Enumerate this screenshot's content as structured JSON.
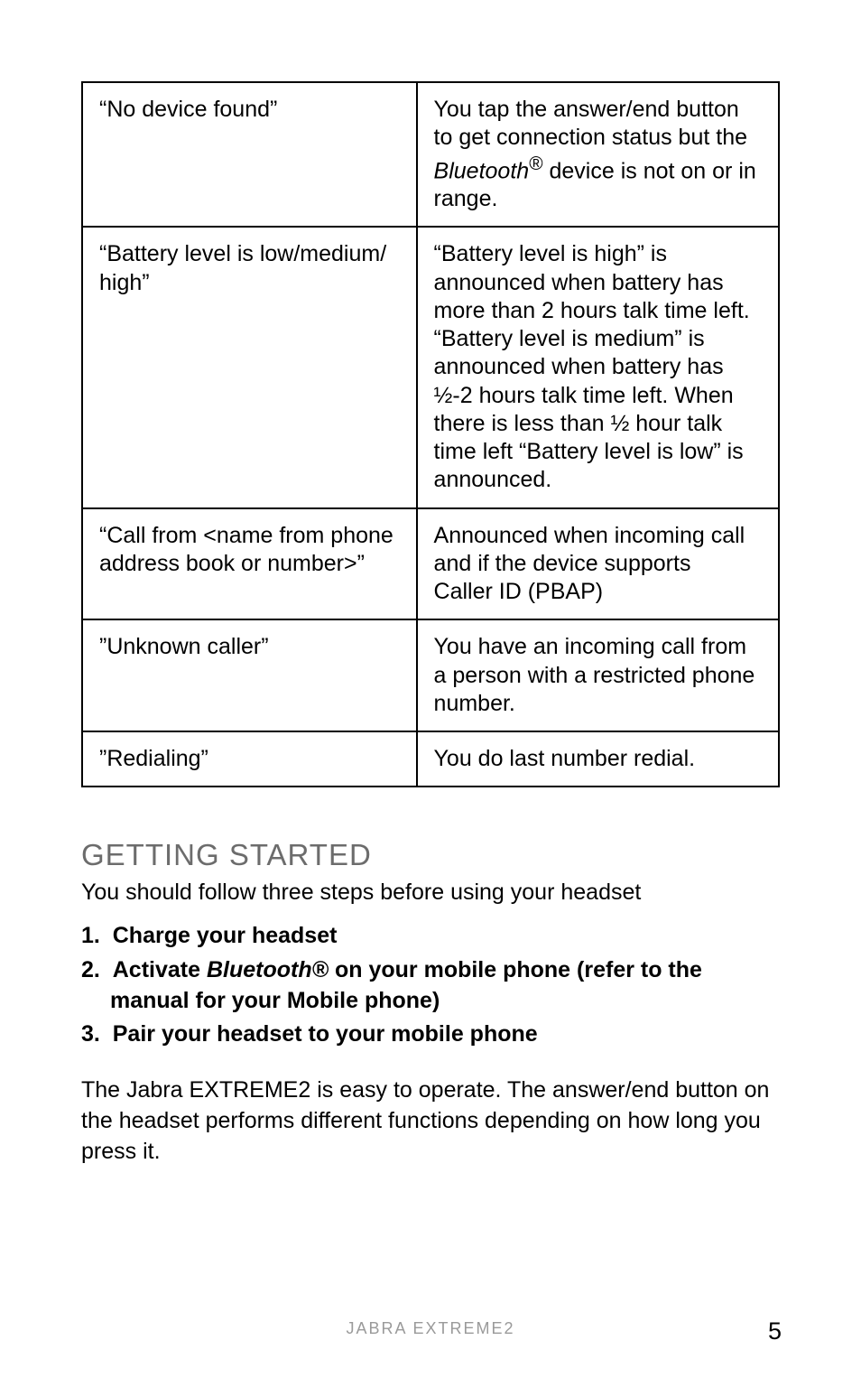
{
  "table": {
    "border_color": "#000000",
    "rows": [
      {
        "left": "“No device found”",
        "right": "You tap the answer/end button to get connection status but the <span class=\"italic\">Bluetooth</span><sup>®</sup> device is not on or in range."
      },
      {
        "left": "“Battery level is low/medium/\nhigh”",
        "right": "“Battery level is high” is announced when battery has more than 2 hours talk time left. “Battery level is medium” is announced when battery has ½-2 hours talk time left. When there is less than ½ hour talk time left “Battery level is low” is announced."
      },
      {
        "left": "“Call from <name from phone address book or number>”",
        "right": "Announced when incoming call and if the device supports  Caller ID (PBAP)"
      },
      {
        "left": "”Unknown caller”",
        "right": "You have an incoming call from a person with a restricted phone number."
      },
      {
        "left": "”Redialing”",
        "right": "You do last number redial."
      }
    ]
  },
  "section_heading": "GETTING STARTED",
  "lead": "You should follow three steps before using your headset",
  "steps": [
    "Charge your headset",
    "Activate <span class=\"italic\">Bluetooth®</span> on your mobile phone (refer to the manual for your Mobile phone)",
    "Pair your headset to your mobile phone"
  ],
  "body_paragraph": "The Jabra EXTREME2 is easy to operate. The answer/end button on the headset performs different functions depending on how long you press it.",
  "footer_text": "JABRA EXTREME2",
  "page_number": "5",
  "colors": {
    "heading": "#6c6c6c",
    "footer": "#9a9a9a",
    "text": "#000000",
    "background": "#ffffff"
  },
  "fontsizes": {
    "table_cell": 25,
    "heading": 33,
    "body": 25,
    "footer": 18,
    "pagenum": 27
  }
}
